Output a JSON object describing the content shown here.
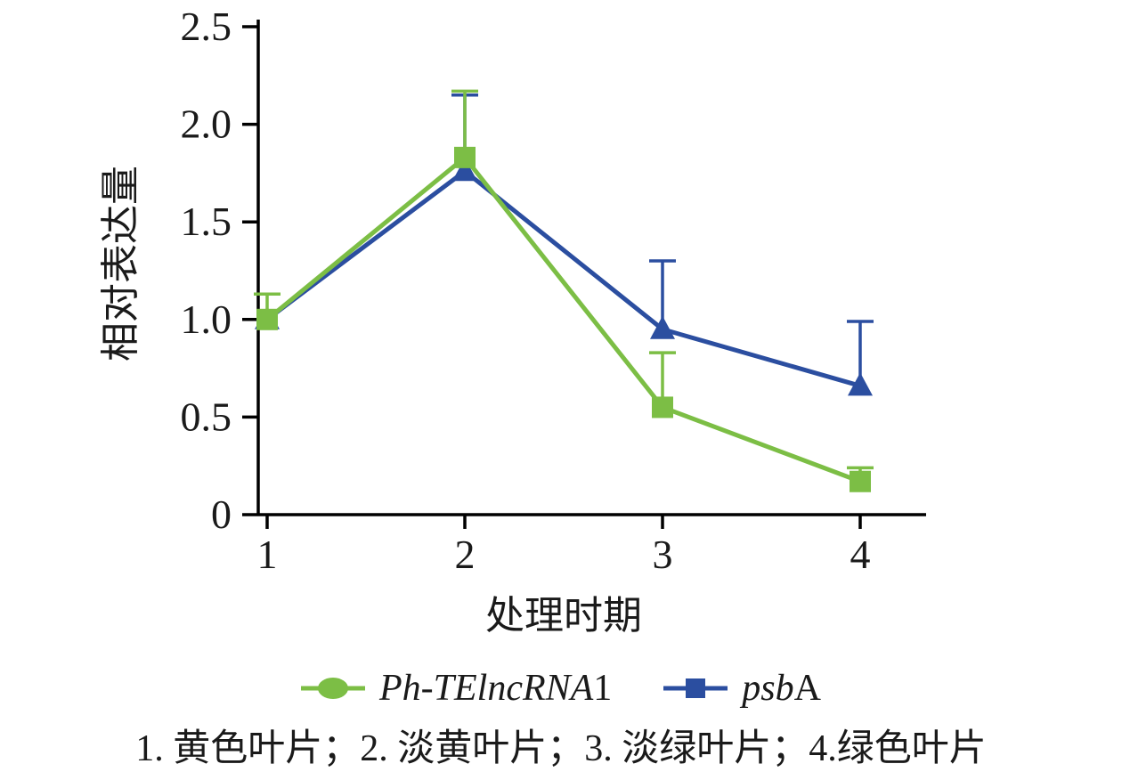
{
  "chart_data": {
    "type": "line",
    "x": [
      1,
      2,
      3,
      4
    ],
    "xticks": [
      "1",
      "2",
      "3",
      "4"
    ],
    "yticks": [
      "0",
      "0.5",
      "1.0",
      "1.5",
      "2.0",
      "2.5"
    ],
    "xlabel": "处理时期",
    "ylabel": "相对表达量",
    "ylim": [
      0,
      2.5
    ],
    "grid": false,
    "legend_position": "bottom",
    "series": [
      {
        "name": "Ph-TElncRNA1",
        "label_italic": "Ph-TElncRNA",
        "label_regular": "1",
        "color": "#7CBE45",
        "marker": "square",
        "legend_marker": "circle",
        "values": [
          1.0,
          1.83,
          0.55,
          0.17
        ],
        "error_upper": [
          0.13,
          0.34,
          0.28,
          0.07
        ]
      },
      {
        "name": "psbA",
        "label_italic": "psb",
        "label_regular": "A",
        "color": "#2B4EA0",
        "marker": "triangle",
        "legend_marker": "square",
        "values": [
          1.0,
          1.76,
          0.95,
          0.66
        ],
        "error_upper": [
          0,
          0.39,
          0.35,
          0.33
        ]
      }
    ],
    "caption": "1. 黄色叶片；2. 淡黄叶片；3. 淡绿叶片；4.绿色叶片"
  },
  "colors": {
    "axis": "#000000",
    "background": "#ffffff",
    "text": "#1a1a1a"
  }
}
